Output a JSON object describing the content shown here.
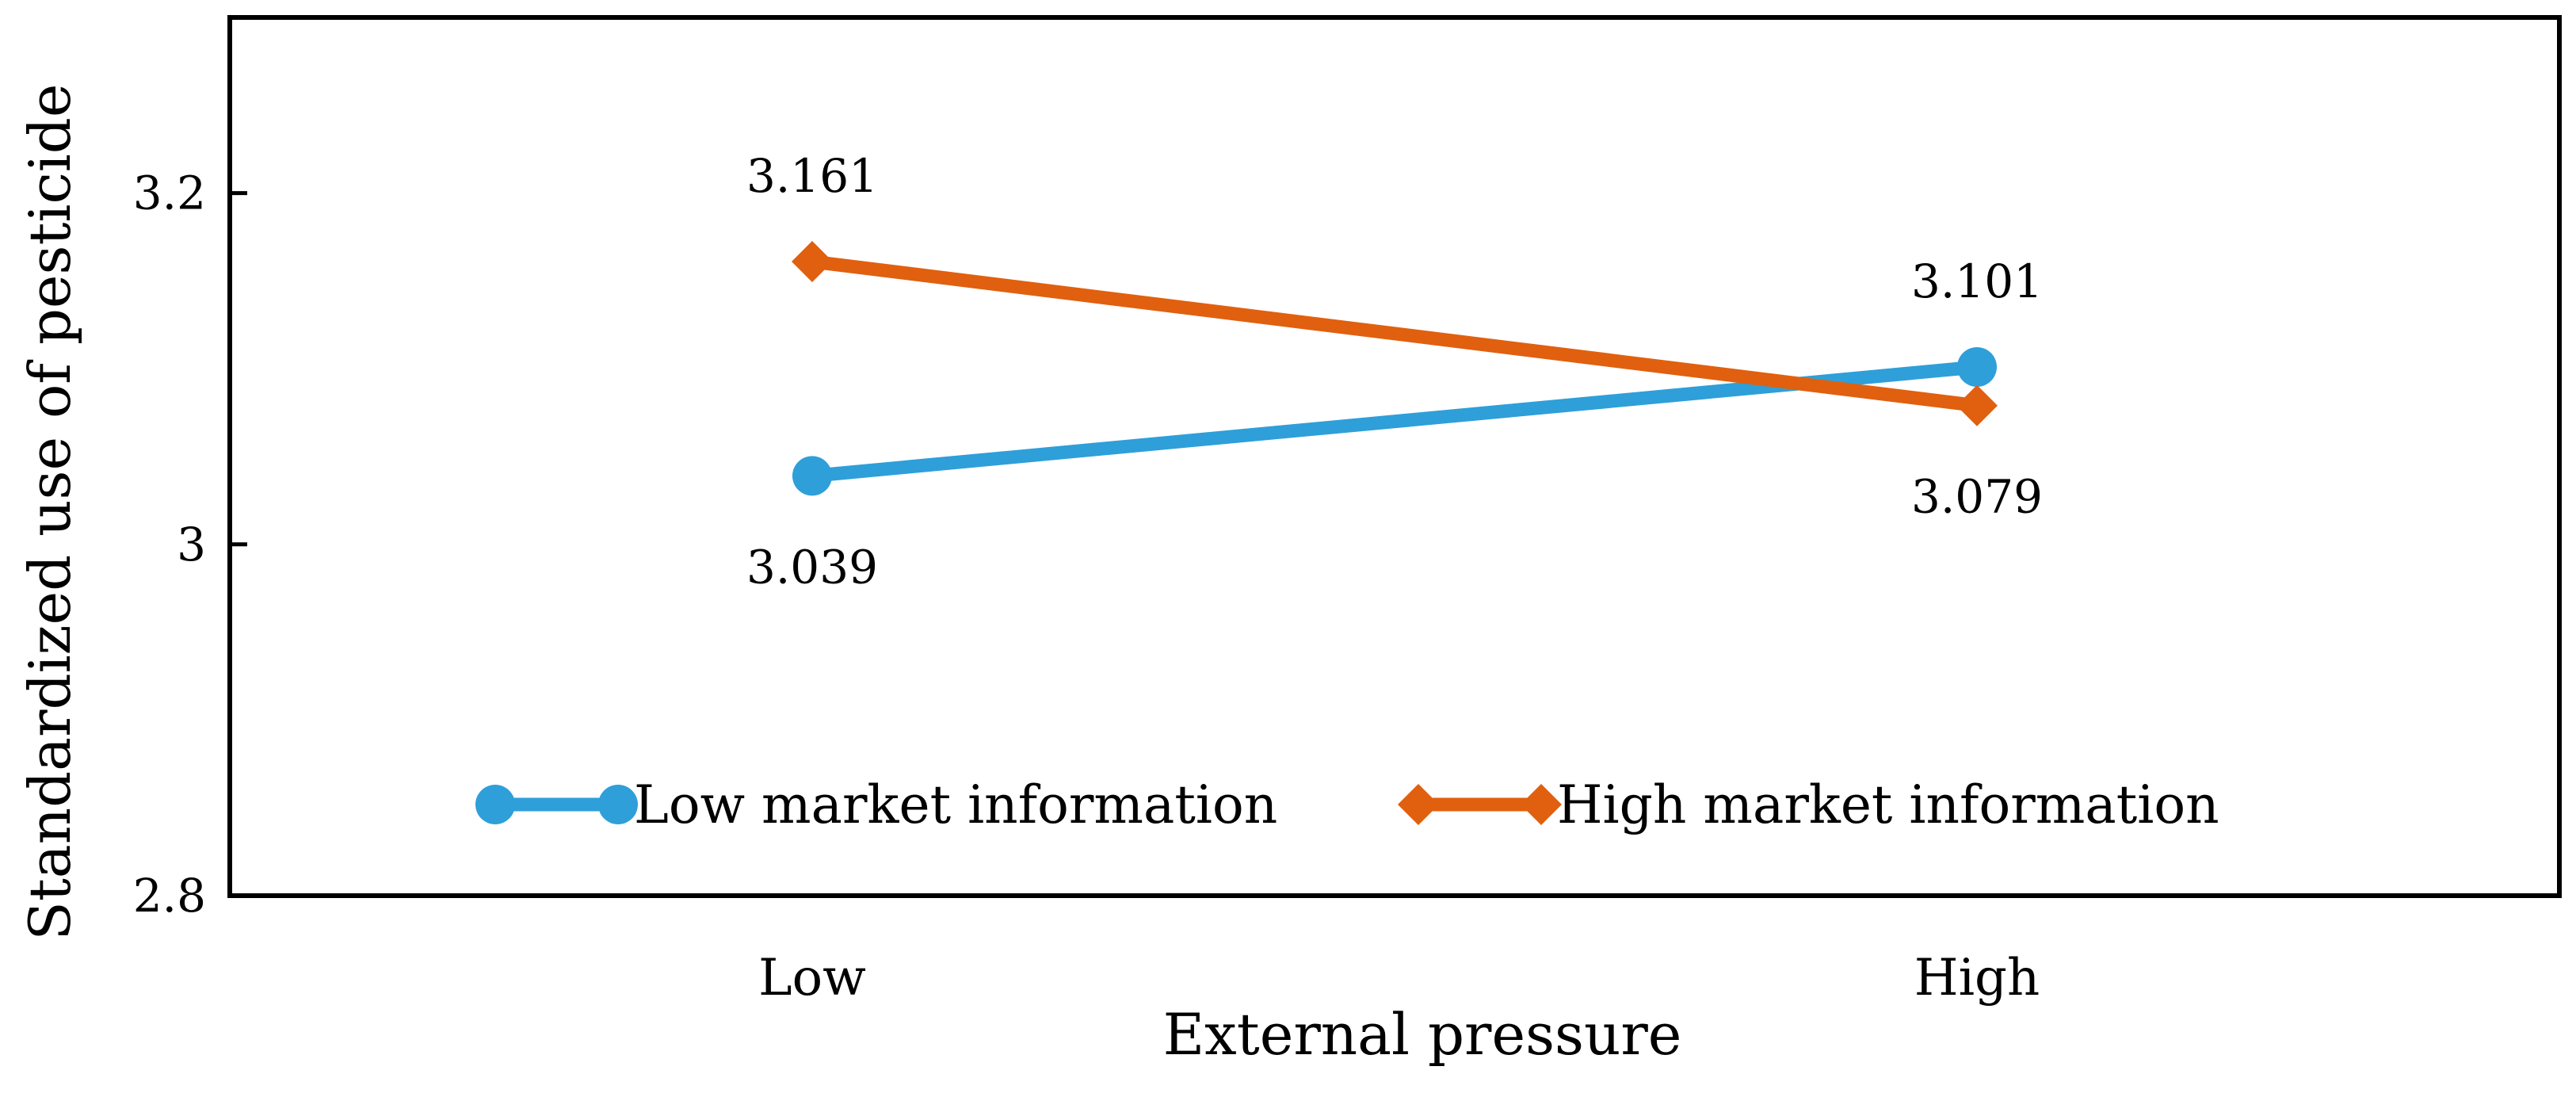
{
  "chart_data": {
    "type": "line",
    "title": "",
    "xlabel": "External pressure",
    "ylabel": "Standardized use of pesticide",
    "categories": [
      "Low",
      "High"
    ],
    "ylim": [
      2.8,
      3.3
    ],
    "yticks": [
      2.8,
      3,
      3.2
    ],
    "ytick_labels": [
      "2.8",
      "3",
      "3.2"
    ],
    "grid": false,
    "legend_position": "bottom-inside",
    "series": [
      {
        "name": "Low market information",
        "values": [
          3.039,
          3.101
        ],
        "labels": [
          "3.039",
          "3.101"
        ],
        "label_positions": [
          "below",
          "above"
        ],
        "color": "#2E9FD9",
        "marker": "circle"
      },
      {
        "name": "High market information",
        "values": [
          3.161,
          3.079
        ],
        "labels": [
          "3.161",
          "3.079"
        ],
        "label_positions": [
          "above",
          "below"
        ],
        "color": "#E0600F",
        "marker": "diamond"
      }
    ]
  }
}
